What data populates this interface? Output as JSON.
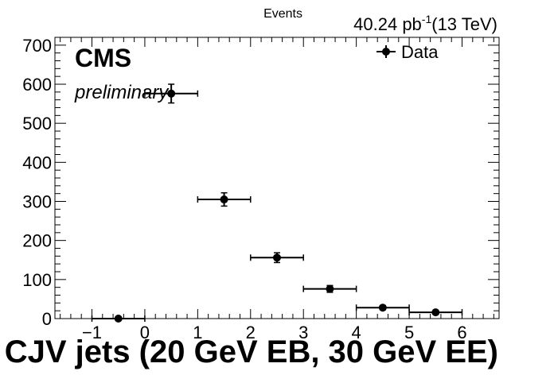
{
  "chart_data": {
    "type": "scatter",
    "xlabel": "CJV jets (20 GeV EB, 30 GeV EE)",
    "ylabel": "Events",
    "xlim": [
      -1.7,
      6.7
    ],
    "ylim": [
      0,
      720
    ],
    "x_ticks": [
      -1,
      0,
      1,
      2,
      3,
      4,
      5,
      6
    ],
    "y_ticks": [
      0,
      100,
      200,
      300,
      400,
      500,
      600,
      700
    ],
    "grid": false,
    "legend_position": "top-right",
    "lumi_label": "40.24 pb",
    "lumi_exponent": "-1",
    "energy_label": "(13 TeV)",
    "cms_label": "CMS",
    "cms_sublabel": "preliminary",
    "series": [
      {
        "name": "Data",
        "color": "#000000",
        "points": [
          {
            "x": -0.5,
            "y": 0,
            "xerr": 0.5,
            "yerr": 0
          },
          {
            "x": 0.5,
            "y": 576,
            "xerr": 0.5,
            "yerr": 24
          },
          {
            "x": 1.5,
            "y": 305,
            "xerr": 0.5,
            "yerr": 17
          },
          {
            "x": 2.5,
            "y": 156,
            "xerr": 0.5,
            "yerr": 12.5
          },
          {
            "x": 3.5,
            "y": 76,
            "xerr": 0.5,
            "yerr": 8.7
          },
          {
            "x": 4.5,
            "y": 28,
            "xerr": 0.5,
            "yerr": 5.3
          },
          {
            "x": 5.5,
            "y": 16,
            "xerr": 0.5,
            "yerr": 4
          }
        ]
      }
    ]
  }
}
